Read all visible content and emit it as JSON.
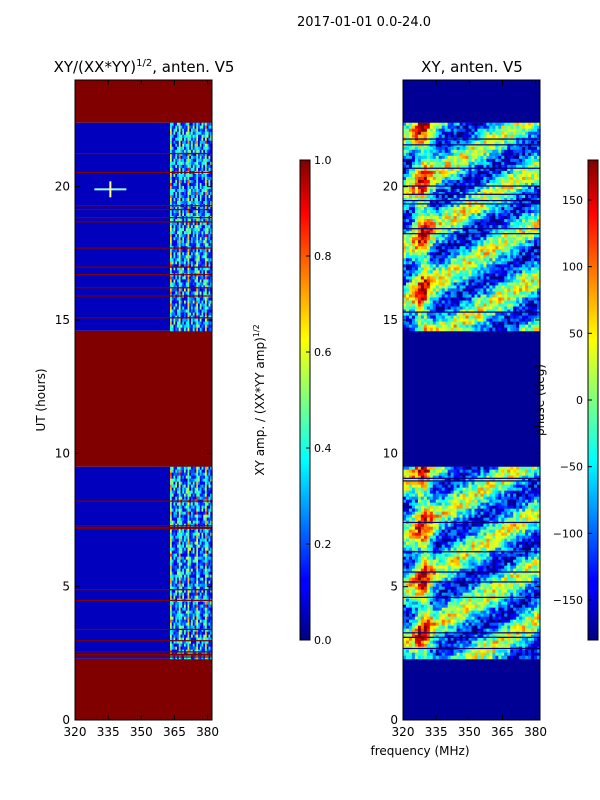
{
  "figure": {
    "suptitle": "2017-01-01 0.0-24.0",
    "xlabel_shared": "frequency (MHz)"
  },
  "chart_data": [
    {
      "type": "heatmap",
      "title_main": "XY/(XX*YY)",
      "title_sup": "1/2",
      "title_tail": ", anten. V5",
      "ylabel": "UT (hours)",
      "xlim": [
        320,
        382
      ],
      "ylim": [
        0,
        24
      ],
      "xticks": [
        320,
        335,
        350,
        365,
        380
      ],
      "yticks": [
        0,
        5,
        10,
        15,
        20
      ],
      "colorbar": {
        "label_main": "XY amp. / (XX*YY amp)",
        "label_sup": "1/2",
        "range": [
          0.0,
          1.0
        ],
        "ticks": [
          "0.0",
          "0.2",
          "0.4",
          "0.6",
          "0.8",
          "1.0"
        ],
        "tick_values": [
          0.0,
          0.2,
          0.4,
          0.6,
          0.8,
          1.0
        ]
      },
      "regions": [
        {
          "t0": 0.0,
          "t1": 2.3,
          "state": "flagged",
          "value": 1.0
        },
        {
          "t0": 2.3,
          "t1": 9.5,
          "state": "data",
          "value_lowband": 0.05,
          "value_highband": 0.55
        },
        {
          "t0": 9.5,
          "t1": 14.6,
          "state": "flagged",
          "value": 1.0
        },
        {
          "t0": 14.6,
          "t1": 22.4,
          "state": "data",
          "value_lowband": 0.05,
          "value_highband": 0.55
        },
        {
          "t0": 22.4,
          "t1": 24.0,
          "state": "flagged",
          "value": 1.0
        }
      ],
      "highband_start_mhz": 363,
      "spike": {
        "t": 19.9,
        "f": 336
      }
    },
    {
      "type": "heatmap",
      "title_main": "XY, anten. V5",
      "xlim": [
        320,
        382
      ],
      "ylim": [
        0,
        24
      ],
      "xticks": [
        320,
        335,
        350,
        365,
        380
      ],
      "yticks": [
        0,
        5,
        10,
        15,
        20
      ],
      "colorbar": {
        "label_main": "phase (deg)",
        "range": [
          -180,
          180
        ],
        "ticks": [
          "−150",
          "−100",
          "−50",
          "0",
          "50",
          "100",
          "150"
        ],
        "tick_values": [
          -150,
          -100,
          -50,
          0,
          50,
          100,
          150
        ]
      },
      "regions": [
        {
          "t0": 0.0,
          "t1": 2.3,
          "state": "flagged",
          "value": -180
        },
        {
          "t0": 2.3,
          "t1": 9.5,
          "state": "data"
        },
        {
          "t0": 9.5,
          "t1": 14.6,
          "state": "flagged",
          "value": -180
        },
        {
          "t0": 14.6,
          "t1": 22.4,
          "state": "data"
        },
        {
          "t0": 22.4,
          "t1": 24.0,
          "state": "flagged",
          "value": -180
        }
      ]
    }
  ]
}
